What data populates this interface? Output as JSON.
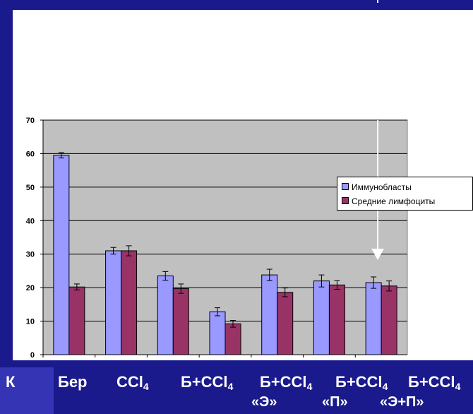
{
  "chart_data": {
    "type": "bar",
    "categories": [
      "К",
      "Бер",
      "CCl4",
      "Б+CCl4",
      "Б+CCl4 «Э»",
      "Б+CCl4 «П»",
      "Б+CCl4 «Э+П»"
    ],
    "series": [
      {
        "name": "Иммунобласты",
        "color": "#9999ff",
        "values": [
          59.5,
          31,
          23.5,
          12.8,
          23.8,
          22,
          21.5
        ],
        "errors": [
          0.8,
          1.0,
          1.3,
          1.2,
          1.7,
          1.8,
          1.7
        ]
      },
      {
        "name": "Средние лимфоциты",
        "color": "#993366",
        "values": [
          20.2,
          31,
          19.7,
          9.2,
          18.6,
          20.8,
          20.5
        ],
        "errors": [
          0.9,
          1.5,
          1.4,
          1.0,
          1.3,
          1.3,
          1.5
        ]
      }
    ],
    "ylim": [
      0,
      70
    ],
    "yticks": [
      0,
      10,
      20,
      30,
      40,
      50,
      60,
      70
    ],
    "grid": true,
    "plot_background": "#c0c0c0",
    "legend_position": "right",
    "annotation_arrow_color": "#ffffff"
  },
  "category_labels": [
    {
      "main": "К",
      "sub": "",
      "tail": "",
      "line2": ""
    },
    {
      "main": "Бер",
      "sub": "",
      "tail": "",
      "line2": ""
    },
    {
      "main": "CCl",
      "sub": "4",
      "tail": "",
      "line2": ""
    },
    {
      "main": "Б+CCl",
      "sub": "4",
      "tail": "",
      "line2": ""
    },
    {
      "main": "Б+CCl",
      "sub": "4",
      "tail": "",
      "line2": "«Э»"
    },
    {
      "main": "Б+CCl",
      "sub": "4",
      "tail": "",
      "line2": "«П»"
    },
    {
      "main": "Б+CCl",
      "sub": "4",
      "tail": "",
      "line2": "«Э+П»"
    }
  ],
  "legend": {
    "items": [
      {
        "label": "Иммунобласты",
        "color": "#9999ff"
      },
      {
        "label": "Средние лимфоциты",
        "color": "#993366"
      }
    ]
  },
  "colors": {
    "background": "#1a1a8c",
    "strip": "#3434b4",
    "panel": "#ffffff"
  }
}
